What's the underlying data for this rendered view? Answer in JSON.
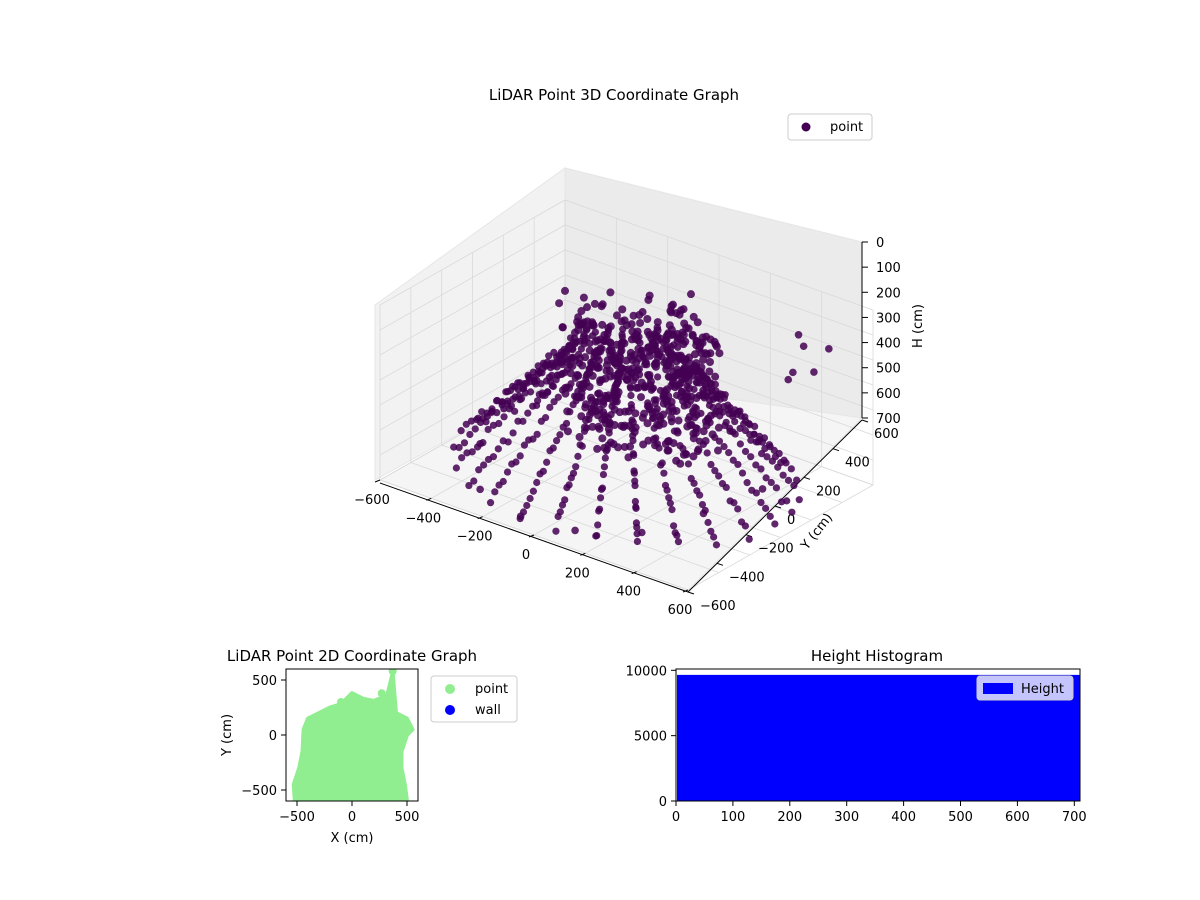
{
  "chart_data": [
    {
      "type": "scatter3d",
      "title": "LiDAR Point 3D Coordinate Graph",
      "xlabel": "X (cm)",
      "ylabel": "Y (cm)",
      "zlabel": "H (cm)",
      "xlim": [
        -600,
        600
      ],
      "ylim": [
        -600,
        600
      ],
      "zlim": [
        0,
        700
      ],
      "z_inverted": true,
      "x_ticks": [
        -600,
        -400,
        -200,
        0,
        200,
        400,
        600
      ],
      "y_ticks": [
        -600,
        -400,
        -200,
        0,
        200,
        400,
        600
      ],
      "z_ticks": [
        0,
        100,
        200,
        300,
        400,
        500,
        600,
        700
      ],
      "point_color": "#440154",
      "legend": {
        "placement": "top-right",
        "entries": [
          {
            "label": "point",
            "color": "#440154"
          }
        ]
      },
      "series": [
        {
          "name": "point",
          "points": [
            [
              400,
              450,
              120
            ],
            [
              450,
              400,
              130
            ],
            [
              500,
              480,
              150
            ],
            [
              520,
              350,
              190
            ],
            [
              450,
              330,
              210
            ],
            [
              480,
              250,
              200
            ],
            [
              -500,
              150,
              600
            ],
            [
              -480,
              300,
              560
            ],
            [
              -450,
              -200,
              640
            ],
            [
              -300,
              -450,
              680
            ],
            [
              -100,
              -520,
              690
            ],
            [
              100,
              -500,
              680
            ],
            [
              300,
              -400,
              650
            ],
            [
              420,
              -200,
              600
            ],
            [
              500,
              50,
              560
            ],
            [
              -200,
              150,
              300
            ],
            [
              0,
              200,
              150
            ],
            [
              200,
              150,
              120
            ],
            [
              -350,
              0,
              420
            ],
            [
              50,
              0,
              250
            ]
          ]
        }
      ]
    },
    {
      "type": "scatter",
      "title": "LiDAR Point 2D Coordinate Graph",
      "xlabel": "X (cm)",
      "ylabel": "Y (cm)",
      "xlim": [
        -600,
        600
      ],
      "ylim": [
        -600,
        600
      ],
      "x_ticks": [
        -500,
        0,
        500
      ],
      "y_ticks": [
        -500,
        0,
        500
      ],
      "legend": {
        "placement": "outside-right",
        "entries": [
          {
            "label": "point",
            "color": "#90ee90"
          },
          {
            "label": "wall",
            "color": "#0000ff"
          }
        ]
      },
      "series": [
        {
          "name": "point",
          "color": "#90ee90",
          "outline": [
            [
              -520,
              -600
            ],
            [
              -530,
              -450
            ],
            [
              -480,
              -300
            ],
            [
              -450,
              -150
            ],
            [
              -440,
              50
            ],
            [
              -400,
              150
            ],
            [
              -300,
              200
            ],
            [
              -200,
              250
            ],
            [
              -100,
              280
            ],
            [
              0,
              380
            ],
            [
              100,
              330
            ],
            [
              200,
              310
            ],
            [
              320,
              360
            ],
            [
              370,
              560
            ],
            [
              400,
              200
            ],
            [
              500,
              150
            ],
            [
              550,
              50
            ],
            [
              500,
              0
            ],
            [
              450,
              -150
            ],
            [
              450,
              -300
            ],
            [
              480,
              -450
            ],
            [
              500,
              -600
            ]
          ],
          "points": [
            [
              -450,
              -550
            ],
            [
              -300,
              -200
            ],
            [
              0,
              0
            ],
            [
              200,
              -300
            ],
            [
              350,
              100
            ],
            [
              370,
              580
            ],
            [
              270,
              380
            ],
            [
              -100,
              300
            ]
          ]
        },
        {
          "name": "wall",
          "color": "#0000ff",
          "points": []
        }
      ]
    },
    {
      "type": "bar",
      "title": "Height Histogram",
      "xlim": [
        0,
        710
      ],
      "ylim": [
        0,
        10100
      ],
      "x_ticks": [
        0,
        100,
        200,
        300,
        400,
        500,
        600,
        700
      ],
      "y_ticks": [
        0,
        5000,
        10000
      ],
      "bar_color": "#0000ff",
      "bin_range": [
        0,
        710
      ],
      "bin_value": 9650,
      "legend": {
        "placement": "top-right",
        "entries": [
          {
            "label": "Height",
            "color": "#0000ff"
          }
        ]
      },
      "series": [
        {
          "name": "Height",
          "color": "#0000ff"
        }
      ]
    }
  ]
}
